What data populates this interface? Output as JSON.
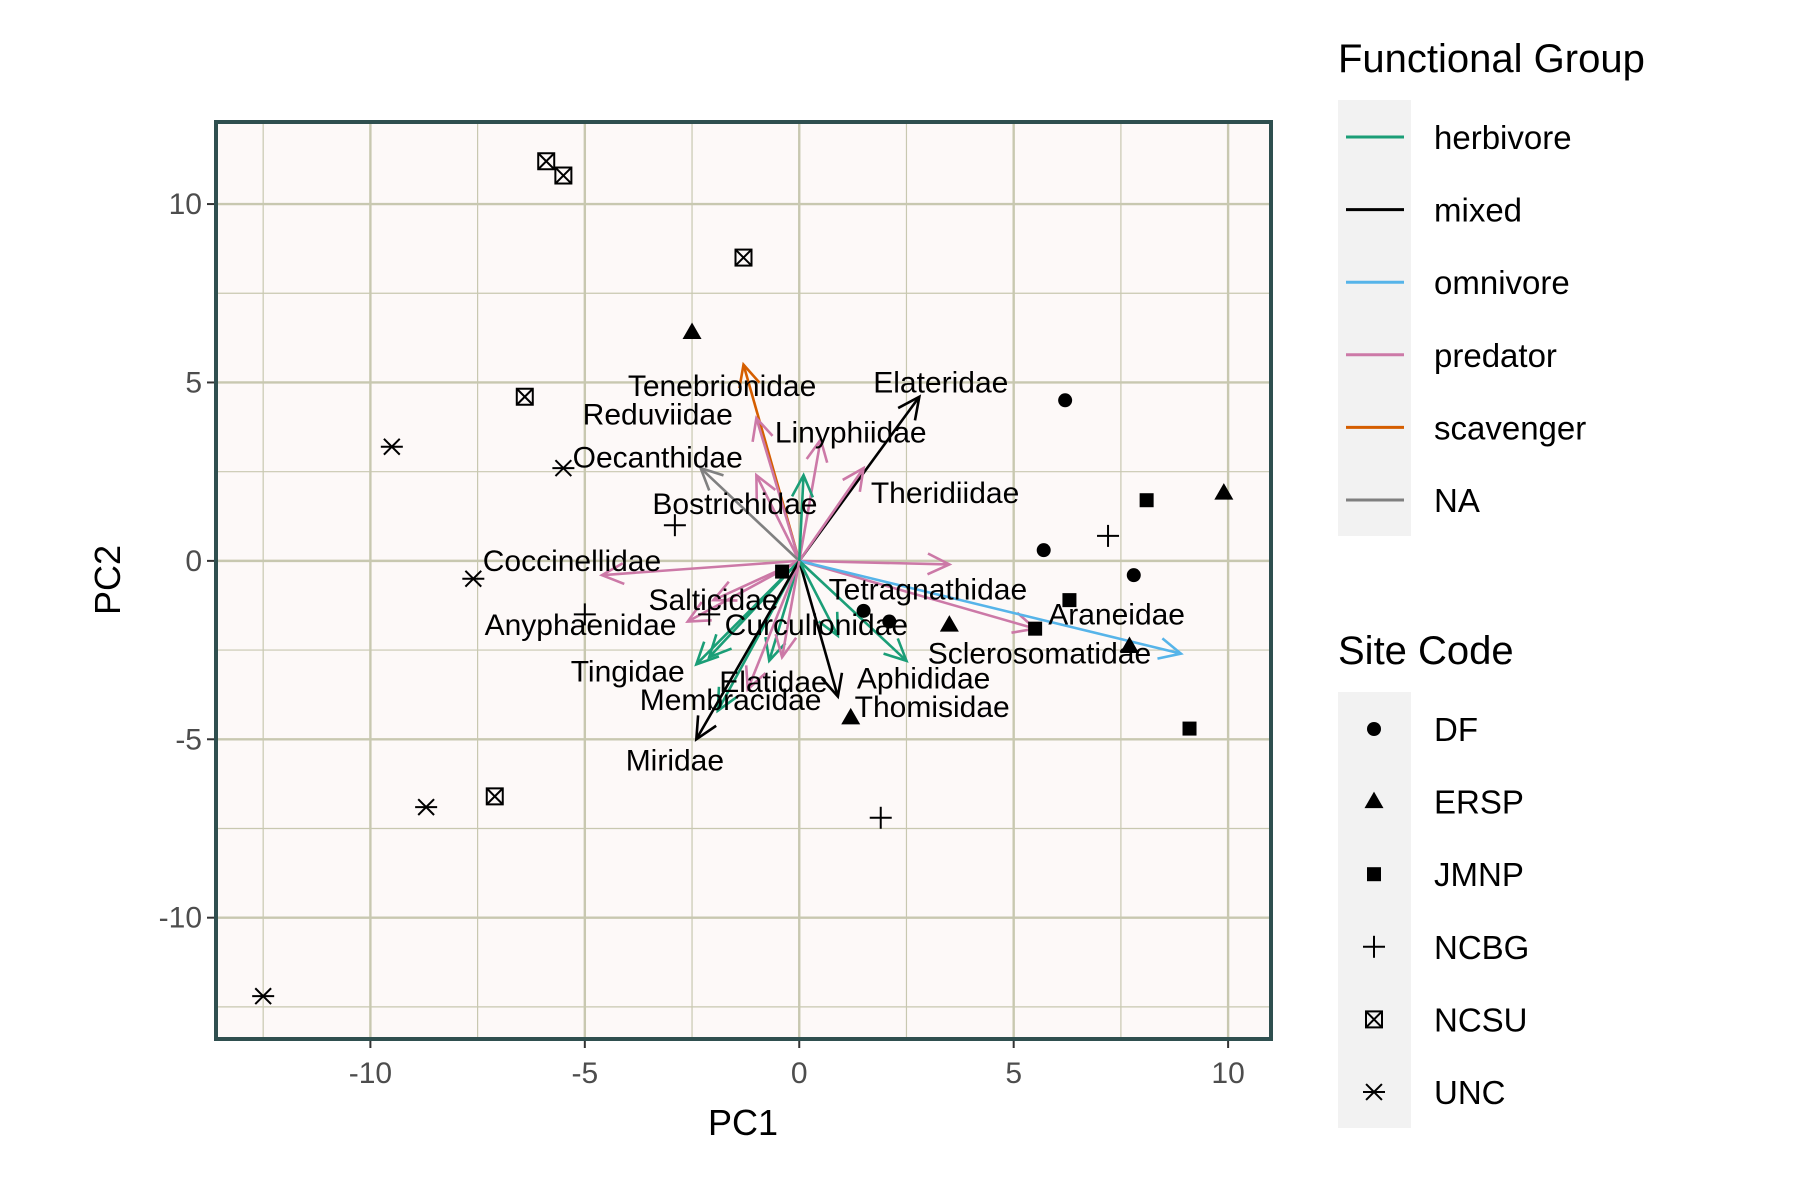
{
  "chart_data": {
    "type": "scatter",
    "xlabel": "PC1",
    "ylabel": "PC2",
    "xlim": [
      -13.6,
      11.0
    ],
    "ylim": [
      -13.4,
      12.3
    ],
    "x_ticks": [
      -10,
      -5,
      0,
      5,
      10
    ],
    "y_ticks": [
      -10,
      -5,
      0,
      5,
      10
    ],
    "x_tick_labels": [
      "-10",
      "-5",
      "0",
      "5",
      "10"
    ],
    "y_tick_labels": [
      "-10",
      "-5",
      "0",
      "5",
      "10"
    ],
    "grid": true,
    "panel_background": "#fdf9f8",
    "panel_border": "#2f4f4f",
    "grid_color": "#c8c8b0",
    "legend_position": "right",
    "legends": {
      "functional_group": {
        "title": "Functional Group",
        "entries": [
          {
            "label": "herbivore",
            "color": "#1b9e77"
          },
          {
            "label": "mixed",
            "color": "#000000"
          },
          {
            "label": "omnivore",
            "color": "#56b4e9"
          },
          {
            "label": "predator",
            "color": "#cc79a7"
          },
          {
            "label": "scavenger",
            "color": "#d55e00"
          },
          {
            "label": "NA",
            "color": "#808080"
          }
        ]
      },
      "site_code": {
        "title": "Site Code",
        "entries": [
          {
            "label": "DF",
            "shape": "circle"
          },
          {
            "label": "ERSP",
            "shape": "triangle"
          },
          {
            "label": "JMNP",
            "shape": "square"
          },
          {
            "label": "NCBG",
            "shape": "plus"
          },
          {
            "label": "NCSU",
            "shape": "boxx"
          },
          {
            "label": "UNC",
            "shape": "asterisk"
          }
        ]
      }
    },
    "points": [
      {
        "site": "DF",
        "x": 6.2,
        "y": 4.5
      },
      {
        "site": "DF",
        "x": 5.7,
        "y": 0.3
      },
      {
        "site": "DF",
        "x": 7.8,
        "y": -0.4
      },
      {
        "site": "DF",
        "x": 1.5,
        "y": -1.4
      },
      {
        "site": "DF",
        "x": 2.1,
        "y": -1.7
      },
      {
        "site": "ERSP",
        "x": -2.5,
        "y": 6.4
      },
      {
        "site": "ERSP",
        "x": 9.9,
        "y": 1.9
      },
      {
        "site": "ERSP",
        "x": 3.5,
        "y": -1.8
      },
      {
        "site": "ERSP",
        "x": 7.7,
        "y": -2.4
      },
      {
        "site": "ERSP",
        "x": 1.2,
        "y": -4.4
      },
      {
        "site": "JMNP",
        "x": 8.1,
        "y": 1.7
      },
      {
        "site": "JMNP",
        "x": 6.3,
        "y": -1.1
      },
      {
        "site": "JMNP",
        "x": 5.5,
        "y": -1.9
      },
      {
        "site": "JMNP",
        "x": 9.1,
        "y": -4.7
      },
      {
        "site": "JMNP",
        "x": -0.4,
        "y": -0.3
      },
      {
        "site": "NCBG",
        "x": -2.9,
        "y": 1.0
      },
      {
        "site": "NCBG",
        "x": 7.2,
        "y": 0.7
      },
      {
        "site": "NCBG",
        "x": -5.0,
        "y": -1.5
      },
      {
        "site": "NCBG",
        "x": -2.1,
        "y": -1.5
      },
      {
        "site": "NCBG",
        "x": 1.9,
        "y": -7.2
      },
      {
        "site": "NCSU",
        "x": -5.9,
        "y": 11.2
      },
      {
        "site": "NCSU",
        "x": -5.5,
        "y": 10.8
      },
      {
        "site": "NCSU",
        "x": -1.3,
        "y": 8.5
      },
      {
        "site": "NCSU",
        "x": -6.4,
        "y": 4.6
      },
      {
        "site": "NCSU",
        "x": -7.1,
        "y": -6.6
      },
      {
        "site": "UNC",
        "x": -9.5,
        "y": 3.2
      },
      {
        "site": "UNC",
        "x": -5.5,
        "y": 2.6
      },
      {
        "site": "UNC",
        "x": -7.6,
        "y": -0.5
      },
      {
        "site": "UNC",
        "x": -8.7,
        "y": -6.9
      },
      {
        "site": "UNC",
        "x": -12.5,
        "y": -12.2
      }
    ],
    "arrows": [
      {
        "label": "Tenebrionidae",
        "group": "scavenger",
        "x": -1.3,
        "y": 5.5,
        "lx": -1.8,
        "ly": 4.9
      },
      {
        "label": "Elateridae",
        "group": "mixed",
        "x": 2.8,
        "y": 4.6,
        "lx": 3.3,
        "ly": 5.0
      },
      {
        "label": "Reduviidae",
        "group": "predator",
        "x": -1.0,
        "y": 4.0,
        "lx": -3.3,
        "ly": 4.1
      },
      {
        "label": "Linyphiidae",
        "group": "predator",
        "x": 0.5,
        "y": 3.4,
        "lx": 1.2,
        "ly": 3.6
      },
      {
        "label": "Oecanthidae",
        "group": "predator",
        "x": -1.0,
        "y": 2.4,
        "lx": -3.3,
        "ly": 2.9
      },
      {
        "label": "Theridiidae",
        "group": "predator",
        "x": 1.5,
        "y": 2.6,
        "lx": 3.4,
        "ly": 1.9
      },
      {
        "label": "Bostrichidae",
        "group": "NA",
        "x": -2.3,
        "y": 2.6,
        "lx": -1.5,
        "ly": 1.6
      },
      {
        "label": "Coccinellidae",
        "group": "predator",
        "x": -4.6,
        "y": -0.4,
        "lx": -5.3,
        "ly": 0.0
      },
      {
        "label": "Tetragnathidae",
        "group": "predator",
        "x": 3.5,
        "y": -0.1,
        "lx": 3.0,
        "ly": -0.8
      },
      {
        "label": "Araneidae",
        "group": "predator",
        "x": 5.5,
        "y": -1.9,
        "lx": 7.4,
        "ly": -1.5
      },
      {
        "label": "Salticidae",
        "group": "predator",
        "x": -2.0,
        "y": -1.1,
        "lx": -2.0,
        "ly": -1.1
      },
      {
        "label": "Anyphaenidae",
        "group": "predator",
        "x": -2.6,
        "y": -1.7,
        "lx": -5.1,
        "ly": -1.8
      },
      {
        "label": "Curculionidae",
        "group": "herbivore",
        "x": -2.1,
        "y": -2.7,
        "lx": 0.4,
        "ly": -1.8
      },
      {
        "label": "Sclerosomatidae",
        "group": "omnivore",
        "x": 8.9,
        "y": -2.6,
        "lx": 5.6,
        "ly": -2.6
      },
      {
        "label": "Tingidae",
        "group": "herbivore",
        "x": -2.4,
        "y": -2.9,
        "lx": -4.0,
        "ly": -3.1
      },
      {
        "label": "Elatidae",
        "group": "herbivore",
        "x": -0.7,
        "y": -2.8,
        "lx": -0.6,
        "ly": -3.4
      },
      {
        "label": "Aphididae",
        "group": "herbivore",
        "x": 2.5,
        "y": -2.8,
        "lx": 2.9,
        "ly": -3.3
      },
      {
        "label": "Membracidae",
        "group": "herbivore",
        "x": -1.9,
        "y": -4.2,
        "lx": -1.6,
        "ly": -3.9
      },
      {
        "label": "Thomisidae",
        "group": "predator",
        "x": -1.2,
        "y": -3.6,
        "lx": 3.1,
        "ly": -4.1
      },
      {
        "label": "Miridae",
        "group": "mixed",
        "x": -2.4,
        "y": -5.0,
        "lx": -2.9,
        "ly": -5.6
      },
      {
        "label": "",
        "group": "mixed",
        "x": 0.9,
        "y": -3.8
      },
      {
        "label": "",
        "group": "herbivore",
        "x": 0.1,
        "y": 2.4
      },
      {
        "label": "",
        "group": "herbivore",
        "x": 0.9,
        "y": -2.1
      },
      {
        "label": "",
        "group": "predator",
        "x": -0.4,
        "y": -2.7
      }
    ]
  }
}
